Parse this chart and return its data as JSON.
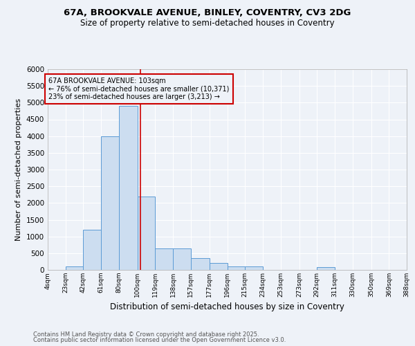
{
  "title1": "67A, BROOKVALE AVENUE, BINLEY, COVENTRY, CV3 2DG",
  "title2": "Size of property relative to semi-detached houses in Coventry",
  "xlabel": "Distribution of semi-detached houses by size in Coventry",
  "ylabel": "Number of semi-detached properties",
  "bin_edges": [
    4,
    23,
    42,
    61,
    80,
    100,
    119,
    138,
    157,
    177,
    196,
    215,
    234,
    253,
    273,
    292,
    311,
    330,
    350,
    369,
    388
  ],
  "bar_heights": [
    0,
    100,
    1200,
    4000,
    4900,
    2200,
    650,
    650,
    350,
    200,
    100,
    100,
    0,
    0,
    0,
    80,
    0,
    0,
    0,
    0
  ],
  "bar_color": "#ccddf0",
  "bar_edge_color": "#5b9bd5",
  "property_line_x": 103,
  "property_line_color": "#cc0000",
  "annotation_line1": "67A BROOKVALE AVENUE: 103sqm",
  "annotation_line2": "← 76% of semi-detached houses are smaller (10,371)",
  "annotation_line3": "23% of semi-detached houses are larger (3,213) →",
  "annotation_box_edge_color": "#cc0000",
  "ylim": [
    0,
    6000
  ],
  "yticks": [
    0,
    500,
    1000,
    1500,
    2000,
    2500,
    3000,
    3500,
    4000,
    4500,
    5000,
    5500,
    6000
  ],
  "footer1": "Contains HM Land Registry data © Crown copyright and database right 2025.",
  "footer2": "Contains public sector information licensed under the Open Government Licence v3.0.",
  "bg_color": "#eef2f8",
  "grid_color": "#ffffff",
  "spine_color": "#aaaaaa"
}
